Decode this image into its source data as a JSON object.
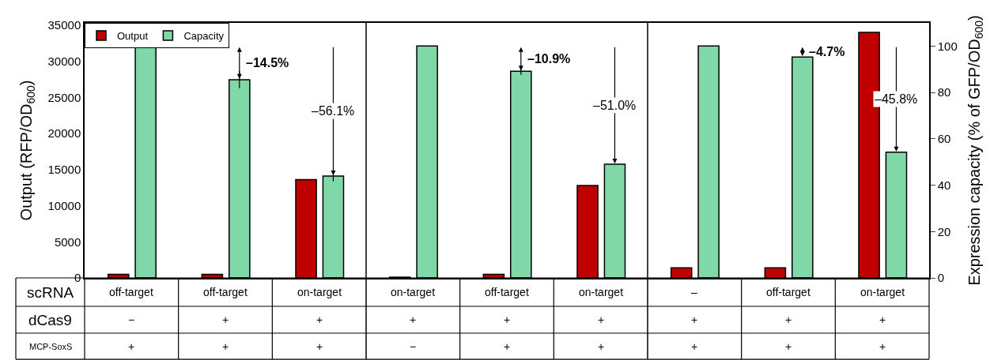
{
  "chart_data": {
    "type": "bar",
    "categories": [
      "off-target\n−\n+",
      "off-target\n+\n+",
      "on-target\n+\n+",
      "on-target\n+\n−",
      "off-target\n+\n+",
      "on-target\n+\n+",
      "–\n+\n+",
      "off-target\n+\n+",
      "on-target\n+\n+"
    ],
    "series": [
      {
        "name": "Output",
        "color": "#c00000",
        "values": [
          500,
          500,
          13600,
          100,
          500,
          12800,
          1400,
          1400,
          34000
        ]
      },
      {
        "name": "Capacity",
        "color": "#80d8a8",
        "axis": "y2",
        "values": [
          100,
          85.5,
          43.9,
          100,
          89.1,
          49.0,
          100,
          95.3,
          54.2
        ],
        "errors": [
          null,
          3.7,
          2.3,
          null,
          1.5,
          null,
          null,
          null,
          null
        ]
      }
    ],
    "ylabel": "Output (RFP/OD$_{600}$)",
    "y2label": "Expression capacity (% of GFP/OD$_{600}$)",
    "ylim": [
      0,
      35300
    ],
    "yticks": [
      0,
      5000,
      10000,
      15000,
      20000,
      25000,
      30000,
      35000
    ],
    "y2lim": [
      0,
      110
    ],
    "y2ticks": [
      0,
      20,
      40,
      60,
      80,
      100
    ],
    "legend": "top left",
    "annotations": [
      "scRNA",
      "dCas9",
      "MCP-SoxS",
      "–14.5%",
      "–56.1%",
      "–10.9%",
      "–51.0%",
      "–4.7%",
      "–45.8%"
    ]
  }
}
